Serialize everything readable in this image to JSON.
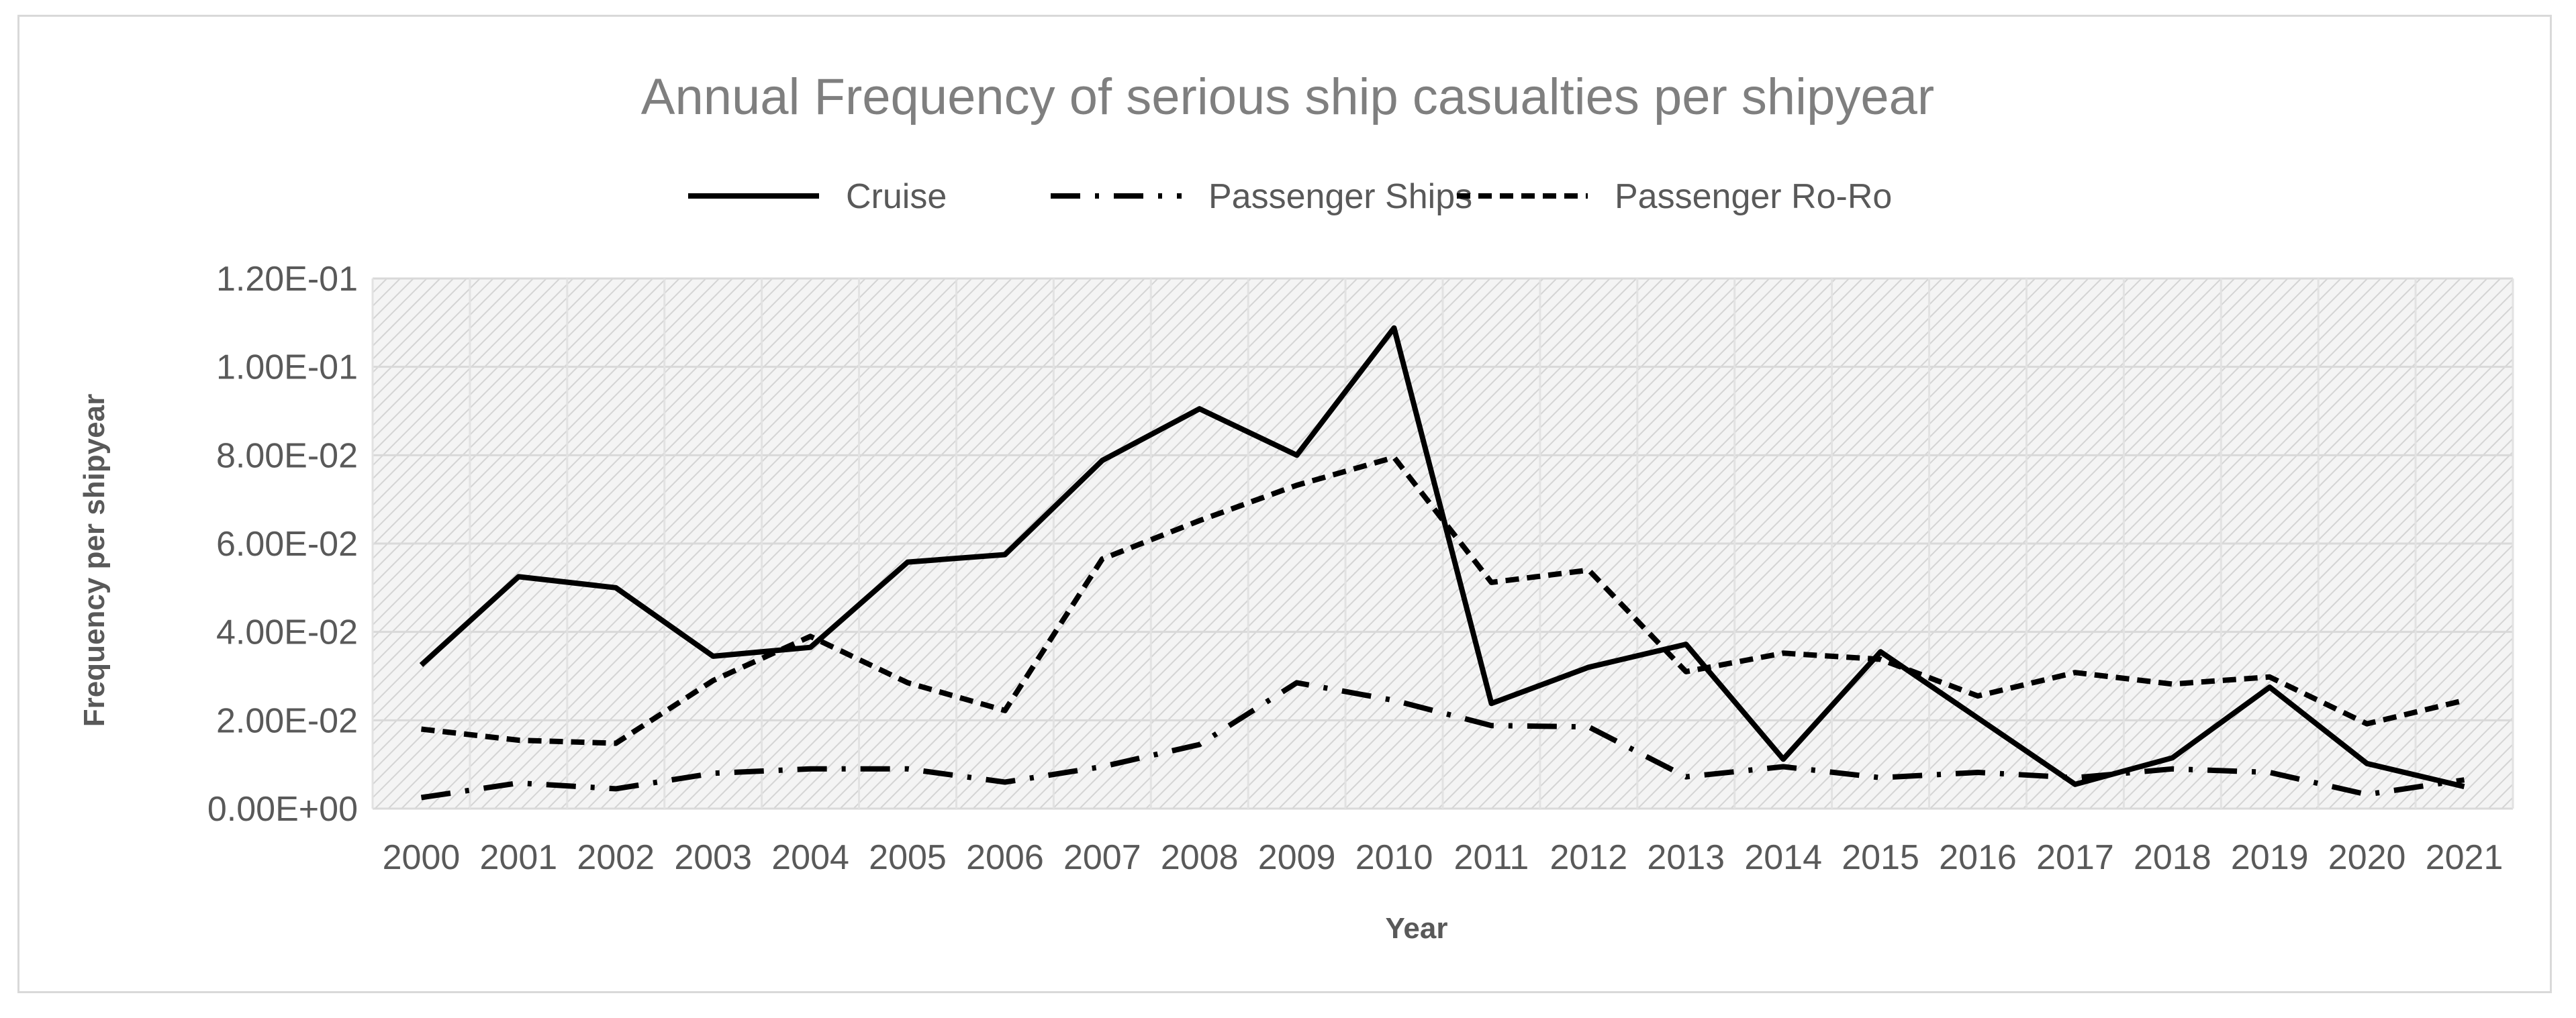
{
  "chart_data": {
    "type": "line",
    "title": "Annual Frequency of serious ship casualties per shipyear",
    "xlabel": "Year",
    "ylabel": "Frequency per shipyear",
    "categories": [
      "2000",
      "2001",
      "2002",
      "2003",
      "2004",
      "2005",
      "2006",
      "2007",
      "2008",
      "2009",
      "2010",
      "2011",
      "2012",
      "2013",
      "2014",
      "2015",
      "2016",
      "2017",
      "2018",
      "2019",
      "2020",
      "2021"
    ],
    "y_ticks": [
      "0.00E+00",
      "2.00E-02",
      "4.00E-02",
      "6.00E-02",
      "8.00E-02",
      "1.00E-01",
      "1.20E-01"
    ],
    "ylim": [
      0,
      0.12
    ],
    "grid": true,
    "legend_position": "top",
    "series": [
      {
        "name": "Cruise",
        "line_style": "solid",
        "values": [
          0.0325,
          0.0525,
          0.05,
          0.0345,
          0.0365,
          0.0558,
          0.0575,
          0.0788,
          0.0905,
          0.08,
          0.1088,
          0.0238,
          0.032,
          0.0372,
          0.0112,
          0.0355,
          0.0205,
          0.0055,
          0.0115,
          0.0275,
          0.0102,
          0.005
        ]
      },
      {
        "name": "Passenger Ships",
        "line_style": "dash-dot",
        "values": [
          0.0025,
          0.0058,
          0.0045,
          0.008,
          0.009,
          0.009,
          0.006,
          0.0095,
          0.0145,
          0.0285,
          0.0245,
          0.0188,
          0.0185,
          0.0072,
          0.0095,
          0.007,
          0.0082,
          0.007,
          0.009,
          0.0082,
          0.0032,
          0.0065
        ]
      },
      {
        "name": "Passenger Ro-Ro",
        "line_style": "dashed",
        "values": [
          0.018,
          0.0155,
          0.0148,
          0.029,
          0.039,
          0.0285,
          0.0222,
          0.0565,
          0.0652,
          0.0732,
          0.0795,
          0.0512,
          0.054,
          0.031,
          0.0352,
          0.0338,
          0.0255,
          0.0308,
          0.0282,
          0.0298,
          0.0192,
          0.0245
        ]
      }
    ],
    "colors": {
      "line": "#000000",
      "grid": "#d9d9d9",
      "plot_bg": "#f2f2f2",
      "text": "#595959",
      "title": "#7f7f7f"
    }
  }
}
